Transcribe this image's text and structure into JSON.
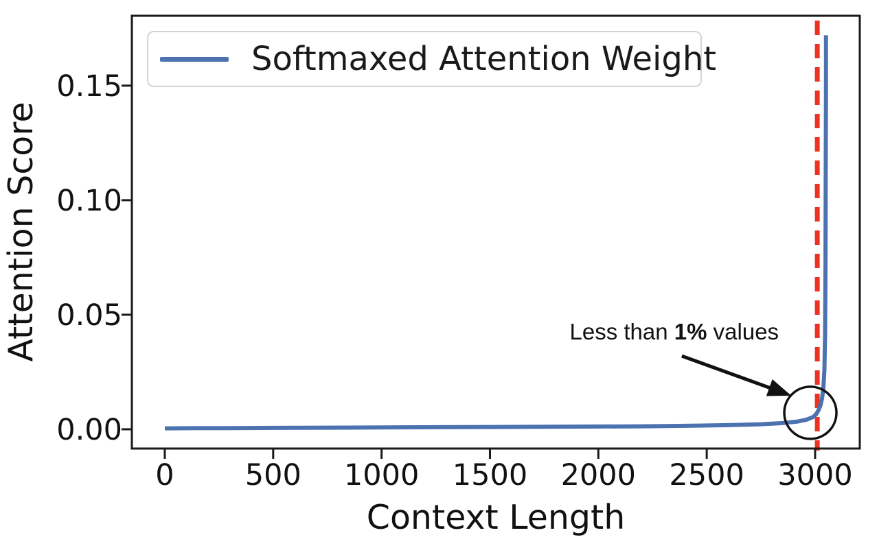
{
  "figure": {
    "background": "#ffffff"
  },
  "chart_data": {
    "type": "line",
    "title": "",
    "xlabel": "Context Length",
    "ylabel": "Attention Score",
    "xlim": [
      -152,
      3206
    ],
    "ylim": [
      -0.0084,
      0.1805
    ],
    "grid": false,
    "axis_color": "#1a1a1a",
    "text_color": "#111111",
    "xticks": {
      "values": [
        0,
        500,
        1000,
        1500,
        2000,
        2500,
        3000
      ],
      "labels": [
        "0",
        "500",
        "1000",
        "1500",
        "2000",
        "2500",
        "3000"
      ]
    },
    "yticks": {
      "values": [
        0.0,
        0.05,
        0.1,
        0.15
      ],
      "labels": [
        "0.00",
        "0.05",
        "0.10",
        "0.15"
      ]
    },
    "legend": {
      "position": "upper left",
      "entries": [
        {
          "label": "Softmaxed Attention Weight",
          "color": "#4c72b0"
        }
      ]
    },
    "series": [
      {
        "name": "Softmaxed Attention Weight",
        "color": "#4c72b0",
        "x": [
          0,
          150,
          300,
          500,
          750,
          1000,
          1250,
          1500,
          1750,
          2000,
          2200,
          2400,
          2600,
          2750,
          2850,
          2920,
          2960,
          2990,
          3005,
          3015,
          3025,
          3032,
          3038,
          3043,
          3046,
          3048,
          3049,
          3050,
          3050
        ],
        "y": [
          0.0004,
          0.0005,
          0.0005,
          0.0006,
          0.0007,
          0.0008,
          0.0009,
          0.001,
          0.0011,
          0.0012,
          0.0013,
          0.0015,
          0.0018,
          0.0022,
          0.0027,
          0.0034,
          0.0042,
          0.0053,
          0.0066,
          0.0082,
          0.0105,
          0.0135,
          0.018,
          0.026,
          0.042,
          0.07,
          0.11,
          0.15,
          0.172
        ]
      }
    ],
    "vline": {
      "x": 3010,
      "color": "#ec3323",
      "style": "dashed"
    },
    "annotations": {
      "note": {
        "parts": [
          "Less than ",
          "1%",
          " values"
        ],
        "x": 2350,
        "y": 0.0425
      },
      "arrow": {
        "from": {
          "x": 2385,
          "y": 0.032
        },
        "to": {
          "x": 2890,
          "y": 0.0147
        },
        "color": "#111111"
      },
      "circle": {
        "x": 2978,
        "y": 0.0072,
        "radius_px": 38,
        "color": "#111111"
      }
    }
  }
}
